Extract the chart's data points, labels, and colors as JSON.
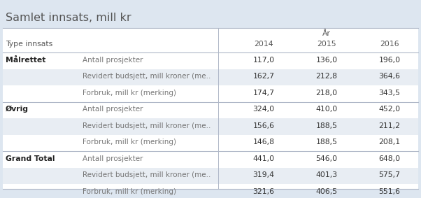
{
  "title": "Samlet innsats, mill kr",
  "header_group": "År",
  "type_innsats_label": "Type innsats",
  "years": [
    "2014",
    "2015",
    "2016"
  ],
  "rows": [
    {
      "group": "Målrettet",
      "label": "Antall prosjekter",
      "vals": [
        "117,0",
        "136,0",
        "196,0"
      ]
    },
    {
      "group": "",
      "label": "Revidert budsjett, mill kroner (me..",
      "vals": [
        "162,7",
        "212,8",
        "364,6"
      ]
    },
    {
      "group": "",
      "label": "Forbruk, mill kr (merking)",
      "vals": [
        "174,7",
        "218,0",
        "343,5"
      ]
    },
    {
      "group": "Øvrig",
      "label": "Antall prosjekter",
      "vals": [
        "324,0",
        "410,0",
        "452,0"
      ]
    },
    {
      "group": "",
      "label": "Revidert budsjett, mill kroner (me..",
      "vals": [
        "156,6",
        "188,5",
        "211,2"
      ]
    },
    {
      "group": "",
      "label": "Forbruk, mill kr (merking)",
      "vals": [
        "146,8",
        "188,5",
        "208,1"
      ]
    },
    {
      "group": "Grand Total",
      "label": "Antall prosjekter",
      "vals": [
        "441,0",
        "546,0",
        "648,0"
      ]
    },
    {
      "group": "",
      "label": "Revidert budsjett, mill kroner (me..",
      "vals": [
        "319,4",
        "401,3",
        "575,7"
      ]
    },
    {
      "group": "",
      "label": "Forbruk, mill kr (merking)",
      "vals": [
        "321,6",
        "406,5",
        "551,6"
      ]
    }
  ],
  "bg_color": "#dde6f0",
  "table_bg": "#ffffff",
  "alt_row_bg": "#e8edf3",
  "sep_line_color": "#b0b8c8",
  "title_color": "#555555",
  "group_color": "#222222",
  "label_color": "#777777",
  "val_color": "#333333",
  "header_color": "#555555",
  "title_fontsize": 11.5,
  "header_fontsize": 7.8,
  "cell_fontsize": 7.8,
  "group_separator_indices": [
    0,
    3,
    6
  ],
  "alt_row_indices": [
    1,
    4,
    7
  ]
}
